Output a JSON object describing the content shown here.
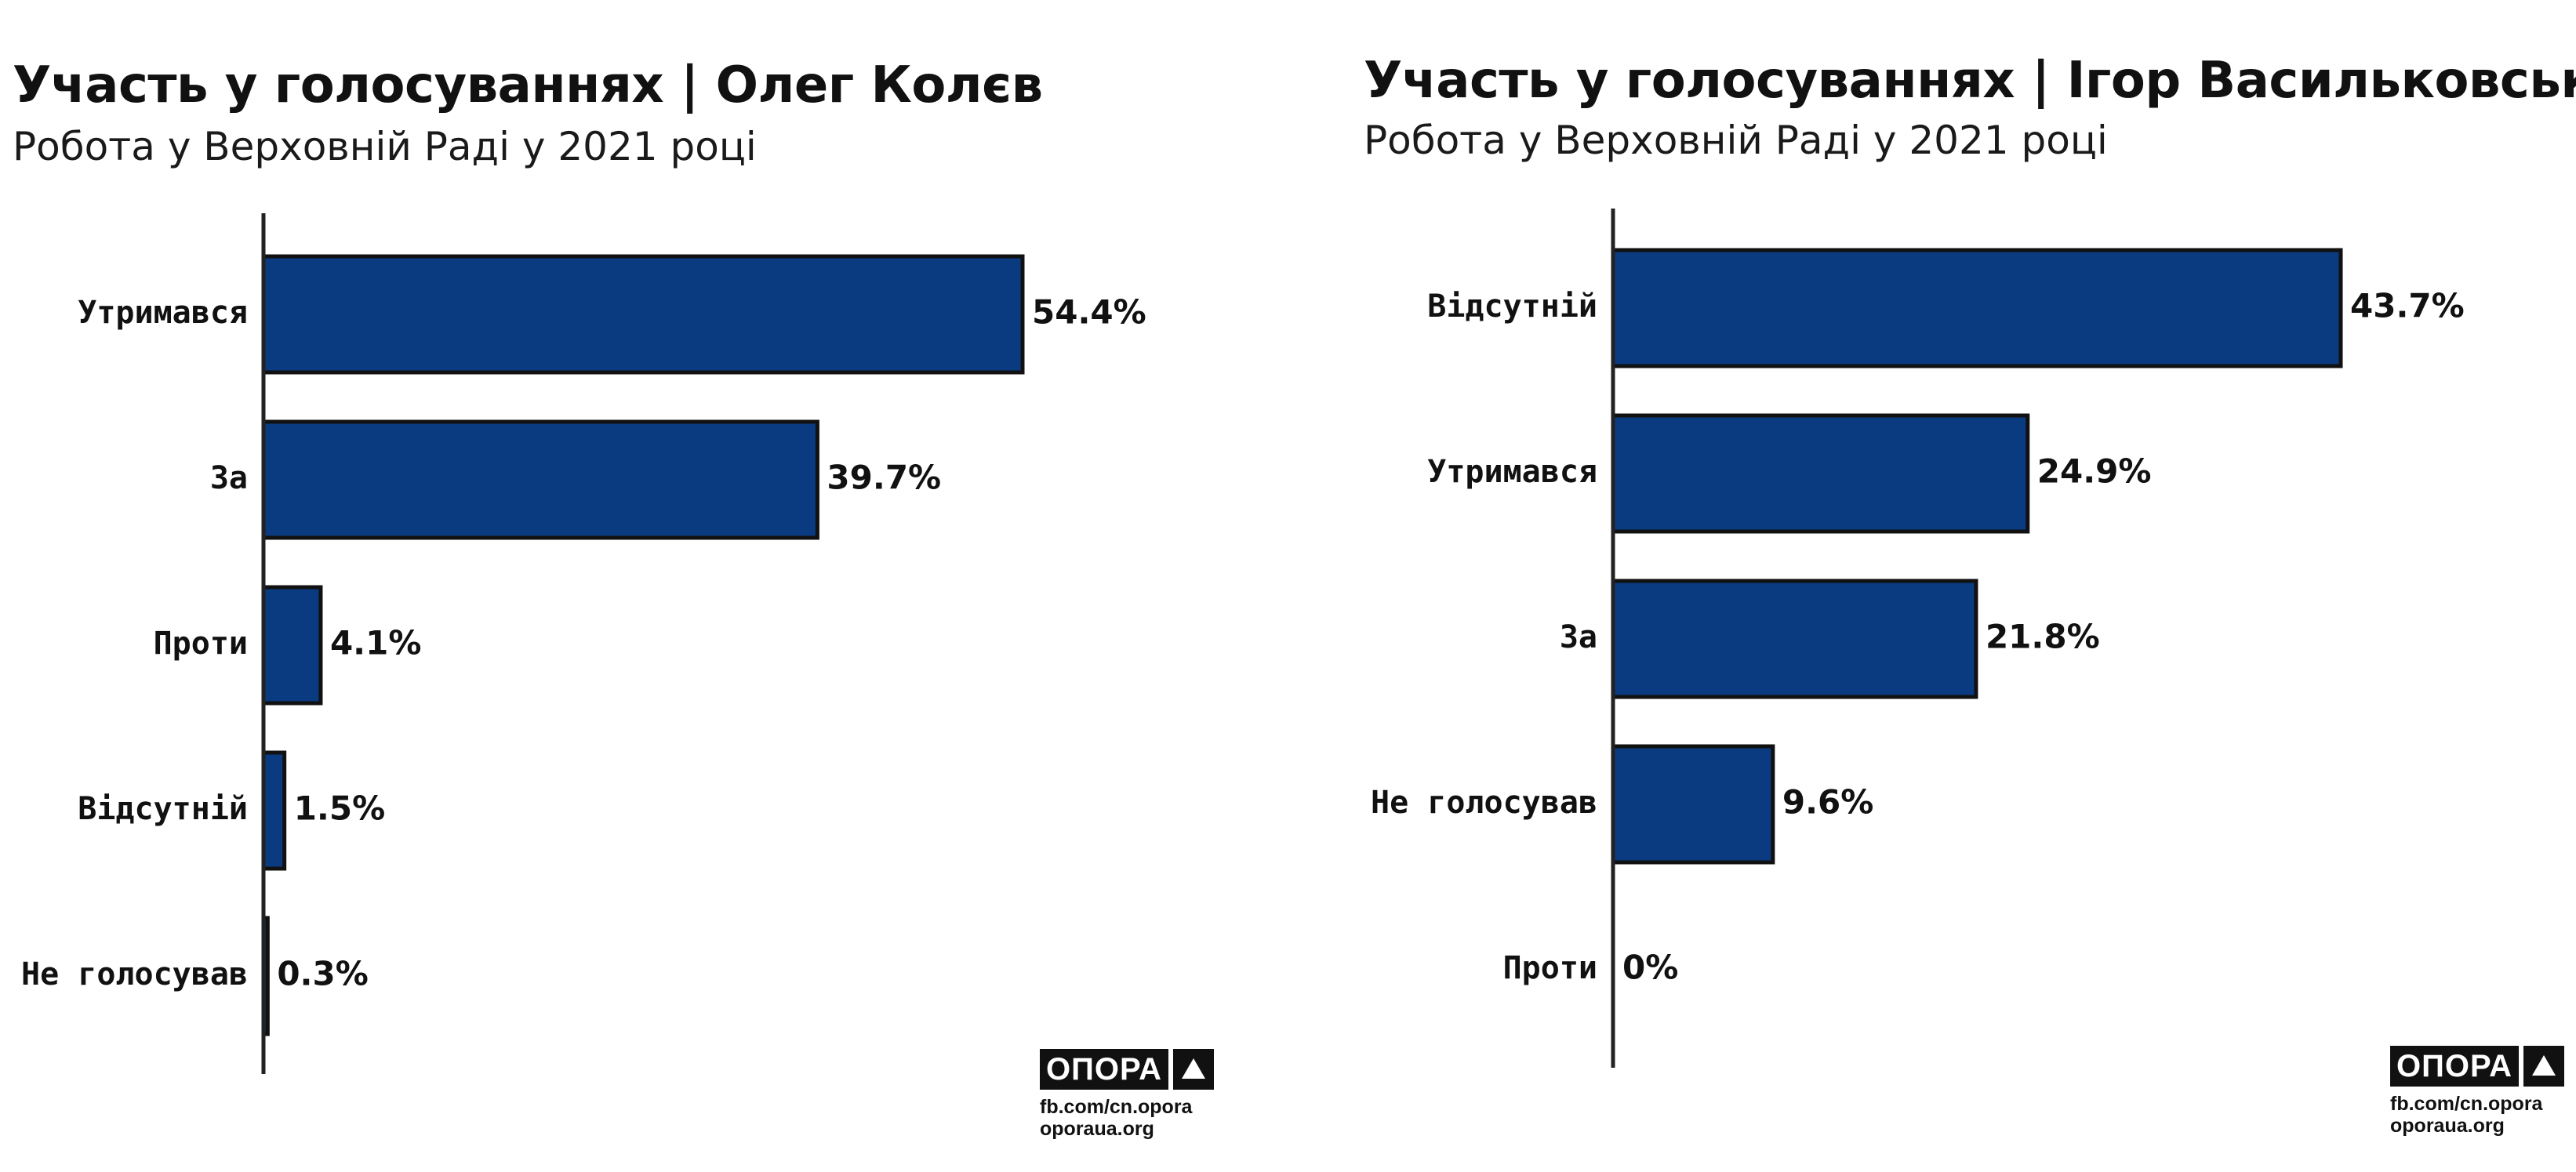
{
  "chart_data": [
    {
      "type": "bar",
      "orientation": "horizontal",
      "title": "Участь у голосуваннях | Олег Колєв",
      "subtitle": "Робота у Верховній Раді у 2021 році",
      "categories": [
        "Утримався",
        "За",
        "Проти",
        "Відсутній",
        "Не голосував"
      ],
      "values": [
        54.4,
        39.7,
        4.1,
        1.5,
        0.3
      ],
      "value_labels": [
        "54.4%",
        "39.7%",
        "4.1%",
        "1.5%",
        "0.3%"
      ],
      "xlim": [
        0,
        54.4
      ],
      "grid": false,
      "bar_color": "#0a3a80"
    },
    {
      "type": "bar",
      "orientation": "horizontal",
      "title": "Участь у голосуваннях | Ігор Васильковський",
      "subtitle": "Робота у Верховній Раді у 2021 році",
      "categories": [
        "Відсутній",
        "Утримався",
        "За",
        "Не голосував",
        "Проти"
      ],
      "values": [
        43.7,
        24.9,
        21.8,
        9.6,
        0
      ],
      "value_labels": [
        "43.7%",
        "24.9%",
        "21.8%",
        "9.6%",
        "0%"
      ],
      "xlim": [
        0,
        43.7
      ],
      "grid": false,
      "bar_color": "#0a3a80"
    }
  ],
  "branding": [
    {
      "logo_text": "ОПОРА",
      "links": [
        "fb.com/cn.opora",
        "oporaua.org"
      ]
    },
    {
      "logo_text": "ОПОРА",
      "links": [
        "fb.com/cn.opora",
        "oporaua.org"
      ]
    }
  ]
}
